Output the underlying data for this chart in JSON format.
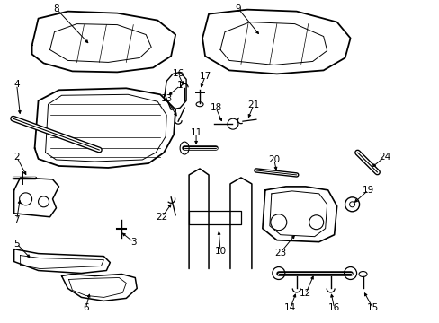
{
  "bg_color": "#ffffff",
  "line_color": "#000000",
  "figsize": [
    4.89,
    3.6
  ],
  "dpi": 100
}
